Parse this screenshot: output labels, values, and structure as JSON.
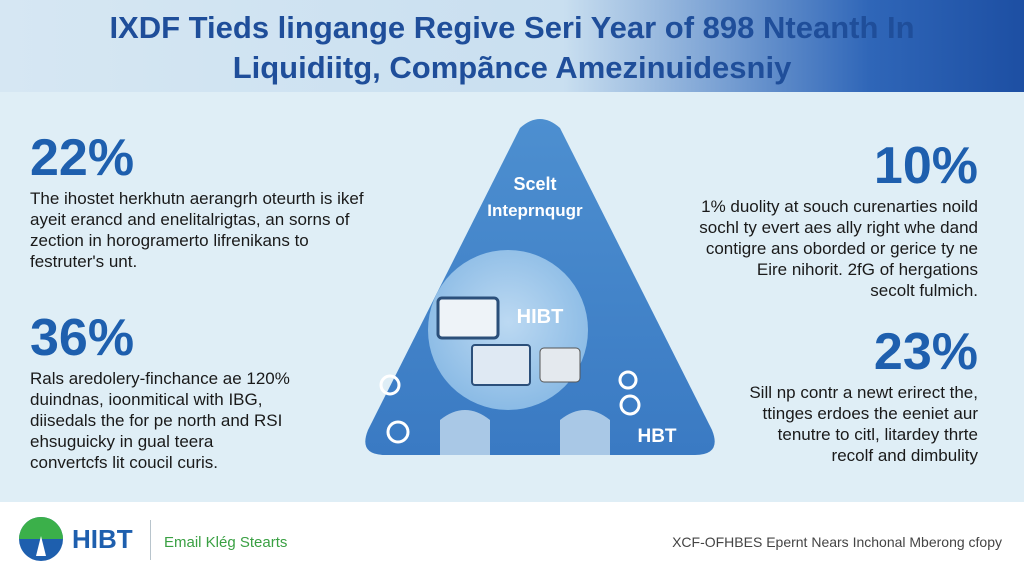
{
  "header": {
    "title_line1": "IXDF Tieds lingange Regive Seri Year of 898 Nteanth In",
    "title_line2": "Liquidiitg, Compãnce Amezinuidesniy"
  },
  "stats": [
    {
      "value": "22%",
      "text": [
        "The ihostet herkhutn aerangrh oteurth is ikef",
        "ayeit erancd and enelitalrigtas, an sorns of",
        "zection in horogramerto lifrenikans to",
        "festruter's unt."
      ]
    },
    {
      "value": "36%",
      "text": [
        "Rals aredolery-finchance ae 120%",
        "duindnas, ioonmitical with IBG,",
        "diisedals the for pe north and RSI",
        "ehsuguicky in gual teera",
        "convertcfs lit coucil curis."
      ]
    },
    {
      "value": "10%",
      "text": [
        "1% duolity at souch curenarties noild",
        "sochl ty evert aes ally right whe dand",
        "contigre ans oborded or gerice ty ne",
        "Eire nihorit. 2fG of hergations",
        "secolt fulmich."
      ]
    },
    {
      "value": "23%",
      "text": [
        "Sill np contr a newt erirect the,",
        "ttinges erdoes the eeniet aur",
        "tenutre to citl, litardey thrte",
        "recolf and dimbulity"
      ]
    }
  ],
  "center": {
    "top_label": [
      "Scelt",
      "Inteprnqugr"
    ],
    "circle_label": "HIBT",
    "bottom_label": "HBT"
  },
  "footer": {
    "brand": "HIBT",
    "tagline": "Email Klég Stearts",
    "note": "XCF-OFHBES Epernt Nears Inchonal Mberong cfopy"
  }
}
